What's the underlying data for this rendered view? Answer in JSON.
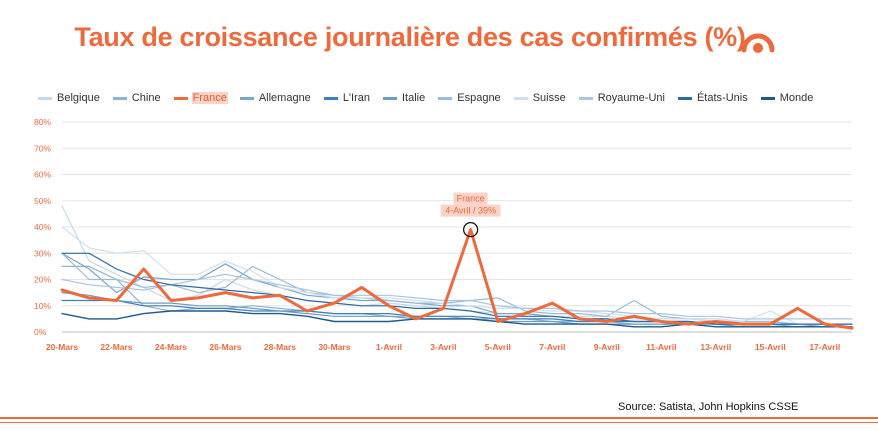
{
  "title": "Taux de croissance journalière des cas confirmés (%)",
  "source": "Source: Satista, John Hopkins CSSE",
  "colors": {
    "accent": "#ee6a3c",
    "annotation_bg": "#fbd3c8"
  },
  "logo_icon": "statista-logo-icon",
  "chart_data": {
    "type": "line",
    "title": "Taux de croissance journalière des cas confirmés (%)",
    "xlabel": "",
    "ylabel": "",
    "ylim": [
      0,
      80
    ],
    "yticks": [
      "0%",
      "10%",
      "20%",
      "30%",
      "40%",
      "50%",
      "60%",
      "70%",
      "80%"
    ],
    "yticks_values": [
      0,
      10,
      20,
      30,
      40,
      50,
      60,
      70,
      80
    ],
    "x": [
      "20-Mars",
      "21-Mars",
      "22-Mars",
      "23-Mars",
      "24-Mars",
      "25-Mars",
      "26-Mars",
      "27-Mars",
      "28-Mars",
      "29-Mars",
      "30-Mars",
      "31-Mars",
      "1-Avril",
      "2-Avril",
      "3-Avril",
      "4-Avril",
      "5-Avril",
      "6-Avril",
      "7-Avril",
      "8-Avril",
      "9-Avril",
      "10-Avril",
      "11-Avril",
      "12-Avril",
      "13-Avril",
      "14-Avril",
      "15-Avril",
      "16-Avril",
      "17-Avril",
      "18-Avril"
    ],
    "xtick_labels": [
      "20-Mars",
      "22-Mars",
      "24-Mars",
      "26-Mars",
      "28-Mars",
      "30-Mars",
      "1-Avril",
      "3-Avril",
      "5-Avril",
      "7-Avril",
      "9-Avril",
      "11-Avril",
      "13-Avril",
      "15-Avril",
      "17-Avril"
    ],
    "grid": true,
    "legend_position": "top",
    "series": [
      {
        "name": "Belgique",
        "color": "#c5d9ea",
        "width": 1.2,
        "values": [
          48,
          27,
          22,
          17,
          12,
          14,
          20,
          16,
          14,
          12,
          11,
          10,
          11,
          10,
          9,
          8,
          7,
          7,
          6,
          6,
          6,
          5,
          5,
          5,
          4,
          4,
          4,
          3,
          3,
          3
        ]
      },
      {
        "name": "Chine",
        "color": "#8fb4d3",
        "width": 1.2,
        "values": [
          25,
          25,
          20,
          10,
          8,
          9,
          9,
          10,
          9,
          8,
          7,
          7,
          6,
          6,
          6,
          5,
          5,
          5,
          4,
          4,
          4,
          3,
          3,
          3,
          3,
          2,
          2,
          2,
          2,
          2
        ]
      },
      {
        "name": "France",
        "color": "#ee6a3c",
        "width": 3,
        "values": [
          16,
          13,
          12,
          24,
          12,
          13,
          15,
          13,
          14,
          8,
          11,
          17,
          10,
          5,
          9,
          39,
          4,
          7,
          11,
          5,
          4,
          6,
          4,
          3,
          4,
          3,
          3,
          9,
          3,
          1.5
        ]
      },
      {
        "name": "Allemagne",
        "color": "#7aa6cc",
        "width": 1.2,
        "values": [
          30,
          24,
          15,
          21,
          20,
          20,
          26,
          20,
          17,
          14,
          13,
          12,
          12,
          11,
          10,
          10,
          7,
          7,
          6,
          5,
          5,
          4,
          4,
          4,
          3,
          3,
          3,
          2,
          3,
          2
        ]
      },
      {
        "name": "L'Iran",
        "color": "#3d7fb8",
        "width": 1.2,
        "values": [
          12,
          12,
          12,
          10,
          10,
          9,
          9,
          8,
          8,
          8,
          7,
          7,
          7,
          6,
          6,
          6,
          5,
          5,
          5,
          4,
          4,
          4,
          4,
          4,
          3,
          3,
          3,
          3,
          3,
          3
        ]
      },
      {
        "name": "Italie",
        "color": "#6f9bc2",
        "width": 1.2,
        "values": [
          15,
          14,
          12,
          11,
          11,
          10,
          10,
          9,
          8,
          7,
          6,
          6,
          6,
          5,
          5,
          5,
          4,
          4,
          4,
          3,
          3,
          3,
          3,
          3,
          3,
          2,
          2,
          2,
          2,
          2
        ]
      },
      {
        "name": "Espagne",
        "color": "#9bbbd8",
        "width": 1.2,
        "values": [
          30,
          20,
          20,
          17,
          18,
          15,
          17,
          25,
          20,
          15,
          14,
          13,
          12,
          11,
          11,
          12,
          13,
          8,
          7,
          7,
          6,
          12,
          6,
          5,
          5,
          4,
          4,
          3,
          3,
          3
        ]
      },
      {
        "name": "Suisse",
        "color": "#d0e0ee",
        "width": 1.2,
        "values": [
          40,
          32,
          30,
          31,
          22,
          22,
          27,
          23,
          17,
          15,
          13,
          13,
          13,
          12,
          11,
          10,
          9,
          9,
          8,
          8,
          7,
          6,
          5,
          5,
          5,
          4,
          8,
          3,
          3,
          3
        ]
      },
      {
        "name": "Royaume-Uni",
        "color": "#a9c5df",
        "width": 1.2,
        "values": [
          20,
          18,
          17,
          16,
          18,
          20,
          22,
          20,
          18,
          16,
          14,
          14,
          14,
          13,
          12,
          12,
          10,
          9,
          9,
          8,
          8,
          7,
          7,
          6,
          6,
          5,
          5,
          5,
          5,
          5
        ]
      },
      {
        "name": "États-Unis",
        "color": "#2d6aa3",
        "width": 1.2,
        "values": [
          30,
          30,
          24,
          20,
          18,
          17,
          16,
          15,
          14,
          12,
          11,
          10,
          10,
          9,
          9,
          8,
          6,
          6,
          6,
          5,
          5,
          4,
          4,
          4,
          3,
          3,
          3,
          3,
          3,
          3
        ]
      },
      {
        "name": "Monde",
        "color": "#1f5a8f",
        "width": 1.4,
        "values": [
          7,
          5,
          5,
          7,
          8,
          8,
          8,
          7,
          7,
          6,
          4,
          4,
          4,
          5,
          5,
          5,
          4,
          3,
          3,
          3,
          3,
          2,
          2,
          3,
          2,
          2,
          2,
          2,
          2,
          2
        ]
      }
    ],
    "annotation": {
      "series": "France",
      "x": "4-Avril",
      "value": 39,
      "line1": "France",
      "line2": "4-Avril / 39%"
    }
  }
}
